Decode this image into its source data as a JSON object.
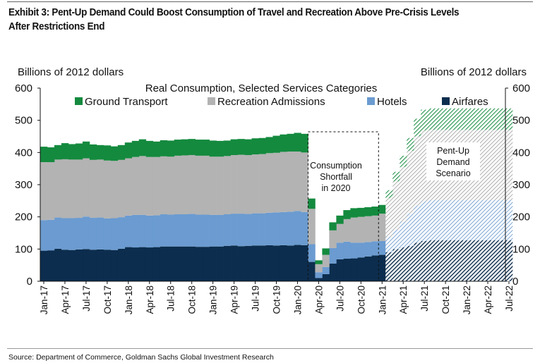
{
  "header": {
    "title_line1": "Exhibit 3: Pent-Up Demand Could Boost Consumption of Travel and Recreation Above Pre-Crisis Levels",
    "title_line2": "After Restrictions End"
  },
  "footer": {
    "source": "Source: Department of Commerce, Goldman Sachs Global Investment Research"
  },
  "chart_data": {
    "type": "area",
    "stacked": true,
    "title": "Real Consumption, Selected Services Categories",
    "ylabel_left": "Billions of 2012 dollars",
    "ylabel_right": "Billions of 2012 dollars",
    "ylim": [
      0,
      600
    ],
    "yticks": [
      0,
      100,
      200,
      300,
      400,
      500,
      600
    ],
    "xlim": [
      "Jan-17",
      "Jul-22"
    ],
    "xtick_labels": [
      "Jan-17",
      "Apr-17",
      "Jul-17",
      "Oct-17",
      "Jan-18",
      "Apr-18",
      "Jul-18",
      "Oct-18",
      "Jan-19",
      "Apr-19",
      "Jul-19",
      "Oct-19",
      "Jan-20",
      "Apr-20",
      "Jul-20",
      "Oct-20",
      "Jan-21",
      "Apr-21",
      "Jul-21",
      "Oct-21",
      "Jan-22",
      "Apr-22",
      "Jul-22"
    ],
    "series_colors": {
      "Airfares": "#0c2d4e",
      "Hotels": "#6b9bd0",
      "Recreation Admissions": "#b3b3b3",
      "Ground Transport": "#148a3e"
    },
    "actual": {
      "months": [
        "Jan-17",
        "Feb-17",
        "Mar-17",
        "Apr-17",
        "May-17",
        "Jun-17",
        "Jul-17",
        "Aug-17",
        "Sep-17",
        "Oct-17",
        "Nov-17",
        "Dec-17",
        "Jan-18",
        "Feb-18",
        "Mar-18",
        "Apr-18",
        "May-18",
        "Jun-18",
        "Jul-18",
        "Aug-18",
        "Sep-18",
        "Oct-18",
        "Nov-18",
        "Dec-18",
        "Jan-19",
        "Feb-19",
        "Mar-19",
        "Apr-19",
        "May-19",
        "Jun-19",
        "Jul-19",
        "Aug-19",
        "Sep-19",
        "Oct-19",
        "Nov-19",
        "Dec-19",
        "Jan-20",
        "Feb-20",
        "Mar-20",
        "Apr-20",
        "May-20",
        "Jun-20",
        "Jul-20",
        "Aug-20",
        "Sep-20",
        "Oct-20",
        "Nov-20",
        "Dec-20",
        "Jan-21"
      ],
      "series": [
        {
          "name": "Airfares",
          "values": [
            95,
            96,
            101,
            98,
            97,
            99,
            100,
            98,
            99,
            98,
            97,
            101,
            106,
            105,
            106,
            105,
            106,
            108,
            108,
            108,
            108,
            108,
            107,
            107,
            108,
            108,
            110,
            111,
            109,
            110,
            111,
            111,
            112,
            111,
            112,
            111,
            113,
            112,
            60,
            10,
            22,
            55,
            68,
            70,
            71,
            74,
            77,
            80,
            82
          ]
        },
        {
          "name": "Hotels",
          "values": [
            95,
            95,
            97,
            98,
            99,
            98,
            101,
            99,
            99,
            97,
            99,
            98,
            98,
            101,
            100,
            99,
            99,
            100,
            99,
            100,
            100,
            101,
            100,
            100,
            98,
            98,
            98,
            99,
            101,
            99,
            100,
            100,
            101,
            103,
            103,
            105,
            105,
            103,
            55,
            18,
            22,
            48,
            52,
            53,
            49,
            46,
            45,
            44,
            43
          ]
        },
        {
          "name": "Recreation Admissions",
          "values": [
            180,
            179,
            180,
            183,
            182,
            181,
            181,
            180,
            180,
            180,
            178,
            178,
            178,
            180,
            183,
            182,
            181,
            180,
            180,
            182,
            183,
            183,
            183,
            183,
            181,
            181,
            181,
            182,
            183,
            183,
            183,
            184,
            185,
            185,
            187,
            187,
            185,
            185,
            110,
            25,
            38,
            55,
            58,
            70,
            78,
            80,
            80,
            80,
            85
          ]
        },
        {
          "name": "Ground Transport",
          "values": [
            48,
            46,
            45,
            50,
            48,
            50,
            52,
            48,
            45,
            47,
            45,
            46,
            49,
            50,
            52,
            50,
            48,
            50,
            50,
            50,
            50,
            50,
            50,
            50,
            50,
            49,
            48,
            49,
            49,
            49,
            50,
            50,
            50,
            53,
            54,
            55,
            58,
            58,
            32,
            12,
            20,
            25,
            26,
            28,
            29,
            28,
            28,
            28,
            27
          ]
        }
      ]
    },
    "scenario": {
      "name": "Pent-Up Demand Scenario",
      "months": [
        "Feb-21",
        "Mar-21",
        "Apr-21",
        "May-21",
        "Jun-21",
        "Jul-21",
        "Aug-21",
        "Sep-21",
        "Oct-21",
        "Nov-21",
        "Dec-21",
        "Jan-22",
        "Feb-22",
        "Mar-22",
        "Apr-22",
        "May-22",
        "Jun-22",
        "Jul-22"
      ],
      "series": [
        {
          "name": "Airfares",
          "values": [
            90,
            100,
            105,
            110,
            120,
            125,
            127,
            127,
            127,
            127,
            127,
            127,
            127,
            127,
            127,
            127,
            127,
            127
          ]
        },
        {
          "name": "Hotels",
          "values": [
            48,
            60,
            80,
            100,
            115,
            123,
            125,
            125,
            125,
            125,
            125,
            125,
            125,
            125,
            125,
            125,
            125,
            125
          ]
        },
        {
          "name": "Recreation Admissions",
          "values": [
            120,
            150,
            170,
            195,
            215,
            220,
            218,
            218,
            218,
            218,
            218,
            218,
            218,
            218,
            218,
            218,
            218,
            218
          ]
        },
        {
          "name": "Ground Transport",
          "values": [
            25,
            30,
            35,
            40,
            55,
            65,
            67,
            67,
            67,
            67,
            67,
            67,
            67,
            67,
            67,
            67,
            67,
            67
          ]
        }
      ]
    },
    "annotations": {
      "shortfall": [
        "Consumption",
        "Shortfall",
        "in 2020"
      ],
      "scenario": [
        "Pent-Up",
        "Demand",
        "Scenario"
      ]
    },
    "legend_position": "top"
  }
}
